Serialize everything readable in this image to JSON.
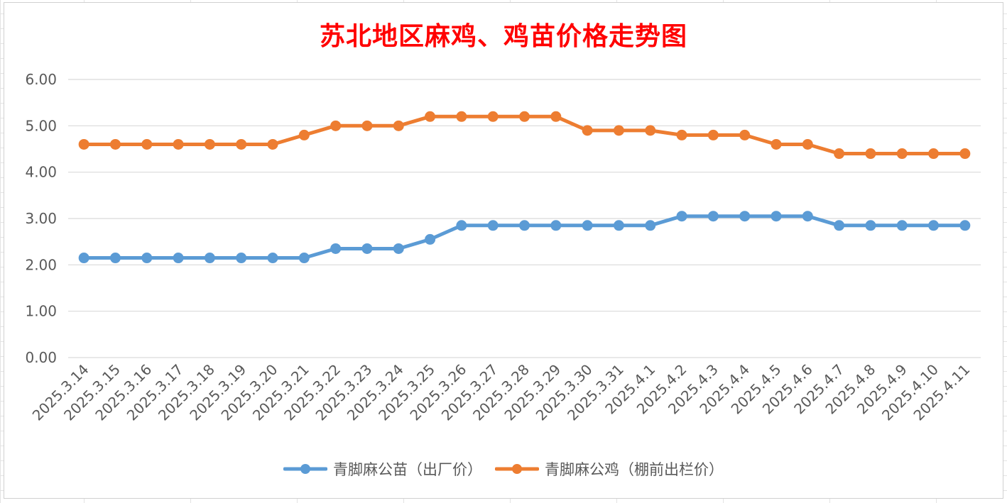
{
  "chart_data": {
    "type": "line",
    "title": "苏北地区麻鸡、鸡苗价格走势图",
    "xlabel": "",
    "ylabel": "",
    "categories": [
      "2025.3.14",
      "2025.3.15",
      "2025.3.16",
      "2025.3.17",
      "2025.3.18",
      "2025.3.19",
      "2025.3.20",
      "2025.3.21",
      "2025.3.22",
      "2025.3.23",
      "2025.3.24",
      "2025.3.25",
      "2025.3.26",
      "2025.3.27",
      "2025.3.28",
      "2025.3.29",
      "2025.3.30",
      "2025.3.31",
      "2025.4.1",
      "2025.4.2",
      "2025.4.3",
      "2025.4.4",
      "2025.4.5",
      "2025.4.6",
      "2025.4.7",
      "2025.4.8",
      "2025.4.9",
      "2025.4.10",
      "2025.4.11"
    ],
    "series": [
      {
        "name": "青脚麻公苗（出厂价）",
        "color": "#5b9bd5",
        "values": [
          2.15,
          2.15,
          2.15,
          2.15,
          2.15,
          2.15,
          2.15,
          2.15,
          2.35,
          2.35,
          2.35,
          2.55,
          2.85,
          2.85,
          2.85,
          2.85,
          2.85,
          2.85,
          2.85,
          3.05,
          3.05,
          3.05,
          3.05,
          3.05,
          2.85,
          2.85,
          2.85,
          2.85,
          2.85
        ]
      },
      {
        "name": "青脚麻公鸡（棚前出栏价）",
        "color": "#ed7d31",
        "values": [
          4.6,
          4.6,
          4.6,
          4.6,
          4.6,
          4.6,
          4.6,
          4.8,
          5.0,
          5.0,
          5.0,
          5.2,
          5.2,
          5.2,
          5.2,
          5.2,
          4.9,
          4.9,
          4.9,
          4.8,
          4.8,
          4.8,
          4.6,
          4.6,
          4.4,
          4.4,
          4.4,
          4.4,
          4.4
        ]
      }
    ],
    "ylim": [
      0,
      6
    ],
    "yticks": [
      "0.00",
      "1.00",
      "2.00",
      "3.00",
      "4.00",
      "5.00",
      "6.00"
    ],
    "grid": true,
    "legend_position": "bottom"
  }
}
